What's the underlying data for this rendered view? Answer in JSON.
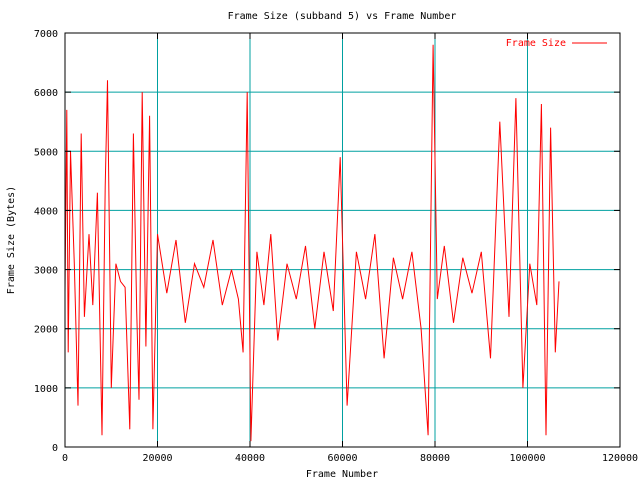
{
  "chart_data": {
    "type": "line",
    "title": "Frame Size (subband 5) vs Frame Number",
    "xlabel": "Frame Number",
    "ylabel": "Frame Size (Bytes)",
    "xlim": [
      0,
      120000
    ],
    "ylim": [
      0,
      7000
    ],
    "x_ticks": [
      0,
      20000,
      40000,
      60000,
      80000,
      100000,
      120000
    ],
    "y_ticks": [
      0,
      1000,
      2000,
      3000,
      4000,
      5000,
      6000,
      7000
    ],
    "grid": true,
    "legend_position": "top-right",
    "series": [
      {
        "name": "Frame Size",
        "color": "#ff0000",
        "x": [
          0,
          400,
          700,
          1200,
          2000,
          2800,
          3500,
          4200,
          5200,
          6000,
          7000,
          8000,
          8700,
          9200,
          10000,
          11000,
          12000,
          13000,
          14000,
          14800,
          15500,
          16000,
          16700,
          17500,
          18300,
          19000,
          20000,
          22000,
          24000,
          26000,
          28000,
          30000,
          32000,
          34000,
          36000,
          37500,
          38500,
          39400,
          40200,
          41500,
          43000,
          44500,
          46000,
          48000,
          50000,
          52000,
          54000,
          56000,
          58000,
          59500,
          61000,
          63000,
          65000,
          67000,
          69000,
          71000,
          73000,
          75000,
          77000,
          78500,
          79600,
          80500,
          82000,
          84000,
          86000,
          88000,
          90000,
          92000,
          94000,
          96000,
          97500,
          99000,
          100500,
          102000,
          103000,
          104000,
          105000,
          106000,
          106800
        ],
        "values": [
          2600,
          5700,
          1600,
          5000,
          3100,
          700,
          5300,
          2200,
          3600,
          2400,
          4300,
          200,
          4400,
          6200,
          1000,
          3100,
          2800,
          2700,
          300,
          5300,
          2300,
          800,
          6000,
          1700,
          5600,
          300,
          3600,
          2600,
          3500,
          2100,
          3100,
          2700,
          3500,
          2400,
          3000,
          2500,
          1600,
          6000,
          100,
          3300,
          2400,
          3600,
          1800,
          3100,
          2500,
          3400,
          2000,
          3300,
          2300,
          4900,
          700,
          3300,
          2500,
          3600,
          1500,
          3200,
          2500,
          3300,
          2000,
          200,
          6800,
          2500,
          3400,
          2100,
          3200,
          2600,
          3300,
          1500,
          5500,
          2200,
          5900,
          1000,
          3100,
          2400,
          5800,
          200,
          5400,
          1600,
          2800
        ]
      }
    ]
  }
}
